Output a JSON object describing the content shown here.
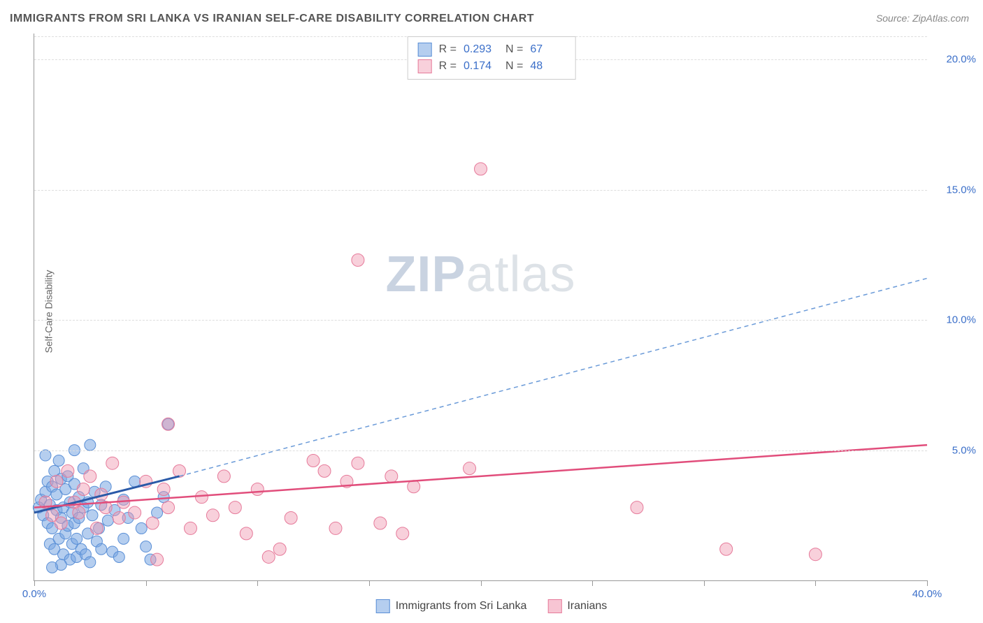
{
  "title": "IMMIGRANTS FROM SRI LANKA VS IRANIAN SELF-CARE DISABILITY CORRELATION CHART",
  "source_prefix": "Source: ",
  "source_name": "ZipAtlas.com",
  "y_axis_label": "Self-Care Disability",
  "watermark": {
    "zip": "ZIP",
    "atlas": "atlas"
  },
  "chart": {
    "type": "scatter",
    "xlim": [
      0,
      40
    ],
    "ylim": [
      0,
      21
    ],
    "x_ticks": [
      0,
      5,
      10,
      15,
      20,
      25,
      30,
      35,
      40
    ],
    "x_tick_labels": {
      "0": "0.0%",
      "40": "40.0%"
    },
    "y_ticks": [
      5,
      10,
      15,
      20
    ],
    "y_tick_labels": {
      "5": "5.0%",
      "10": "10.0%",
      "15": "15.0%",
      "20": "20.0%"
    },
    "grid_color": "#dddddd",
    "axis_color": "#999999",
    "tick_label_color": "#3b6fc9",
    "background_color": "#ffffff",
    "series": [
      {
        "name": "Immigrants from Sri Lanka",
        "color_fill": "rgba(120,165,225,0.55)",
        "color_stroke": "#5a8fd6",
        "marker_radius": 8,
        "R": "0.293",
        "N": "67",
        "trend": {
          "solid": {
            "x1": 0,
            "y1": 2.6,
            "x2": 6.5,
            "y2": 4.0,
            "color": "#2a5aa8",
            "width": 3
          },
          "dashed": {
            "x1": 6.5,
            "y1": 4.0,
            "x2": 40,
            "y2": 11.6,
            "color": "#6a9ad8",
            "width": 1.5,
            "dash": "6,5"
          }
        },
        "points": [
          [
            0.2,
            2.8
          ],
          [
            0.3,
            3.1
          ],
          [
            0.4,
            2.5
          ],
          [
            0.5,
            3.4
          ],
          [
            0.6,
            2.2
          ],
          [
            0.6,
            3.8
          ],
          [
            0.7,
            1.4
          ],
          [
            0.7,
            2.9
          ],
          [
            0.8,
            3.6
          ],
          [
            0.8,
            2.0
          ],
          [
            0.9,
            4.2
          ],
          [
            0.9,
            1.2
          ],
          [
            1.0,
            2.7
          ],
          [
            1.0,
            3.3
          ],
          [
            1.1,
            1.6
          ],
          [
            1.1,
            4.6
          ],
          [
            1.2,
            2.4
          ],
          [
            1.2,
            3.9
          ],
          [
            1.3,
            1.0
          ],
          [
            1.3,
            2.8
          ],
          [
            1.4,
            3.5
          ],
          [
            1.4,
            1.8
          ],
          [
            1.5,
            2.1
          ],
          [
            1.5,
            4.0
          ],
          [
            1.6,
            0.8
          ],
          [
            1.6,
            3.0
          ],
          [
            1.7,
            2.6
          ],
          [
            1.7,
            1.4
          ],
          [
            1.8,
            3.7
          ],
          [
            1.8,
            2.2
          ],
          [
            1.9,
            0.9
          ],
          [
            1.9,
            1.6
          ],
          [
            2.0,
            3.2
          ],
          [
            2.0,
            2.4
          ],
          [
            2.1,
            1.2
          ],
          [
            2.2,
            4.3
          ],
          [
            2.2,
            2.8
          ],
          [
            2.3,
            1.0
          ],
          [
            2.4,
            3.0
          ],
          [
            2.4,
            1.8
          ],
          [
            2.5,
            0.7
          ],
          [
            2.6,
            2.5
          ],
          [
            2.7,
            3.4
          ],
          [
            2.8,
            1.5
          ],
          [
            2.9,
            2.0
          ],
          [
            3.0,
            2.9
          ],
          [
            3.0,
            1.2
          ],
          [
            3.2,
            3.6
          ],
          [
            3.3,
            2.3
          ],
          [
            3.5,
            1.1
          ],
          [
            3.6,
            2.7
          ],
          [
            3.8,
            0.9
          ],
          [
            4.0,
            3.1
          ],
          [
            4.0,
            1.6
          ],
          [
            4.2,
            2.4
          ],
          [
            4.5,
            3.8
          ],
          [
            4.8,
            2.0
          ],
          [
            5.0,
            1.3
          ],
          [
            5.2,
            0.8
          ],
          [
            5.5,
            2.6
          ],
          [
            5.8,
            3.2
          ],
          [
            6.0,
            6.0
          ],
          [
            2.5,
            5.2
          ],
          [
            1.8,
            5.0
          ],
          [
            0.5,
            4.8
          ],
          [
            1.2,
            0.6
          ],
          [
            0.8,
            0.5
          ]
        ]
      },
      {
        "name": "Iranians",
        "color_fill": "rgba(240,150,175,0.45)",
        "color_stroke": "#e67a9a",
        "marker_radius": 9,
        "R": "0.174",
        "N": "48",
        "trend": {
          "solid": {
            "x1": 0,
            "y1": 2.8,
            "x2": 40,
            "y2": 5.2,
            "color": "#e14d7b",
            "width": 2.5
          }
        },
        "points": [
          [
            0.5,
            3.0
          ],
          [
            0.8,
            2.5
          ],
          [
            1.0,
            3.8
          ],
          [
            1.2,
            2.2
          ],
          [
            1.5,
            4.2
          ],
          [
            1.8,
            3.0
          ],
          [
            2.0,
            2.6
          ],
          [
            2.2,
            3.5
          ],
          [
            2.5,
            4.0
          ],
          [
            2.8,
            2.0
          ],
          [
            3.0,
            3.3
          ],
          [
            3.2,
            2.8
          ],
          [
            3.5,
            4.5
          ],
          [
            3.8,
            2.4
          ],
          [
            4.0,
            3.0
          ],
          [
            4.5,
            2.6
          ],
          [
            5.0,
            3.8
          ],
          [
            5.3,
            2.2
          ],
          [
            5.8,
            3.5
          ],
          [
            6.0,
            2.8
          ],
          [
            6.5,
            4.2
          ],
          [
            7.0,
            2.0
          ],
          [
            7.5,
            3.2
          ],
          [
            8.0,
            2.5
          ],
          [
            8.5,
            4.0
          ],
          [
            9.0,
            2.8
          ],
          [
            9.5,
            1.8
          ],
          [
            10.0,
            3.5
          ],
          [
            11.0,
            1.2
          ],
          [
            11.5,
            2.4
          ],
          [
            12.5,
            4.6
          ],
          [
            13.0,
            4.2
          ],
          [
            13.5,
            2.0
          ],
          [
            14.0,
            3.8
          ],
          [
            14.5,
            4.5
          ],
          [
            15.5,
            2.2
          ],
          [
            16.0,
            4.0
          ],
          [
            16.5,
            1.8
          ],
          [
            17.0,
            3.6
          ],
          [
            19.5,
            4.3
          ],
          [
            20.0,
            15.8
          ],
          [
            14.5,
            12.3
          ],
          [
            27.0,
            2.8
          ],
          [
            31.0,
            1.2
          ],
          [
            35.0,
            1.0
          ],
          [
            6.0,
            6.0
          ],
          [
            5.5,
            0.8
          ],
          [
            10.5,
            0.9
          ]
        ]
      }
    ]
  },
  "legend_bottom": [
    {
      "label": "Immigrants from Sri Lanka",
      "fill": "rgba(120,165,225,0.55)",
      "stroke": "#5a8fd6"
    },
    {
      "label": "Iranians",
      "fill": "rgba(240,150,175,0.55)",
      "stroke": "#e67a9a"
    }
  ],
  "legend_labels": {
    "R": "R =",
    "N": "N ="
  }
}
